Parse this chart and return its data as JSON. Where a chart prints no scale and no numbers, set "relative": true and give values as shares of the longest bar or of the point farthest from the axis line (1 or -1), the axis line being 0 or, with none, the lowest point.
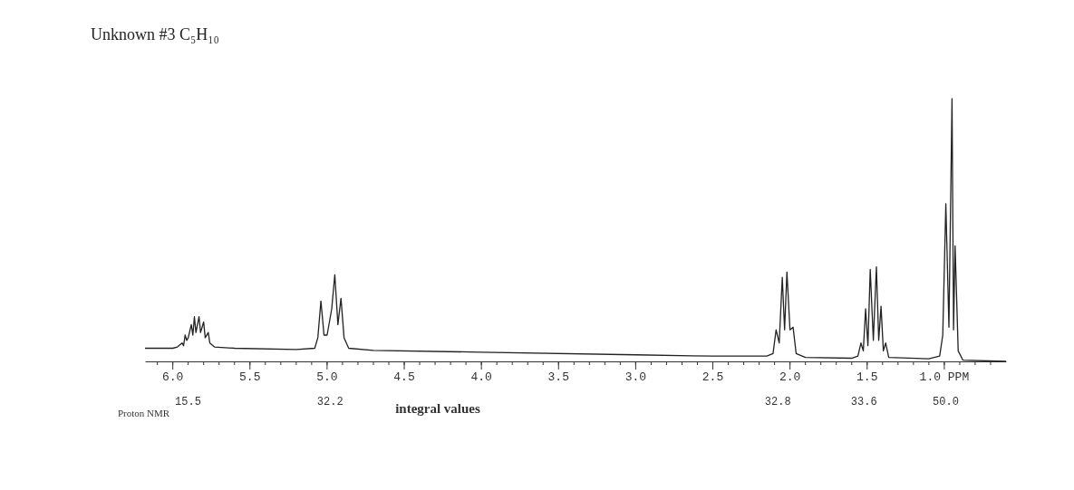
{
  "chart_data": {
    "type": "line",
    "title": "Unknown #3    C₅H₁₀",
    "relative": true,
    "color": "#222222",
    "grid": false,
    "marker": "none",
    "line_style": "solid",
    "xlim": [
      6.18,
      0.6
    ],
    "xticks": [
      {
        "value": 6.1,
        "label": null
      },
      {
        "value": 6.0,
        "label": "6.0"
      },
      {
        "value": 5.9,
        "label": null
      },
      {
        "value": 5.8,
        "label": null
      },
      {
        "value": 5.7,
        "label": null
      },
      {
        "value": 5.6,
        "label": null
      },
      {
        "value": 5.5,
        "label": "5.5"
      },
      {
        "value": 5.4,
        "label": null
      },
      {
        "value": 5.3,
        "label": null
      },
      {
        "value": 5.2,
        "label": null
      },
      {
        "value": 5.1,
        "label": null
      },
      {
        "value": 5.0,
        "label": "5.0"
      },
      {
        "value": 4.9,
        "label": null
      },
      {
        "value": 4.8,
        "label": null
      },
      {
        "value": 4.7,
        "label": null
      },
      {
        "value": 4.6,
        "label": null
      },
      {
        "value": 4.5,
        "label": "4.5"
      },
      {
        "value": 4.4,
        "label": null
      },
      {
        "value": 4.3,
        "label": null
      },
      {
        "value": 4.2,
        "label": null
      },
      {
        "value": 4.1,
        "label": null
      },
      {
        "value": 4.0,
        "label": "4.0"
      },
      {
        "value": 3.9,
        "label": null
      },
      {
        "value": 3.8,
        "label": null
      },
      {
        "value": 3.7,
        "label": null
      },
      {
        "value": 3.6,
        "label": null
      },
      {
        "value": 3.5,
        "label": "3.5"
      },
      {
        "value": 3.4,
        "label": null
      },
      {
        "value": 3.3,
        "label": null
      },
      {
        "value": 3.2,
        "label": null
      },
      {
        "value": 3.1,
        "label": null
      },
      {
        "value": 3.0,
        "label": "3.0"
      },
      {
        "value": 2.9,
        "label": null
      },
      {
        "value": 2.8,
        "label": null
      },
      {
        "value": 2.7,
        "label": null
      },
      {
        "value": 2.6,
        "label": null
      },
      {
        "value": 2.5,
        "label": "2.5"
      },
      {
        "value": 2.4,
        "label": null
      },
      {
        "value": 2.3,
        "label": null
      },
      {
        "value": 2.2,
        "label": null
      },
      {
        "value": 2.1,
        "label": null
      },
      {
        "value": 2.0,
        "label": "2.0"
      },
      {
        "value": 1.9,
        "label": null
      },
      {
        "value": 1.8,
        "label": null
      },
      {
        "value": 1.7,
        "label": null
      },
      {
        "value": 1.6,
        "label": null
      },
      {
        "value": 1.5,
        "label": "1.5"
      },
      {
        "value": 1.4,
        "label": null
      },
      {
        "value": 1.3,
        "label": null
      },
      {
        "value": 1.2,
        "label": null
      },
      {
        "value": 1.1,
        "label": null
      },
      {
        "value": 1.0,
        "label": "1.0 PPM"
      },
      {
        "value": 0.9,
        "label": null
      },
      {
        "value": 0.8,
        "label": null
      },
      {
        "value": 0.7,
        "label": null
      }
    ],
    "x": [
      6.18,
      6.0,
      5.97,
      5.94,
      5.93,
      5.92,
      5.91,
      5.9,
      5.88,
      5.87,
      5.86,
      5.85,
      5.83,
      5.82,
      5.8,
      5.79,
      5.77,
      5.76,
      5.73,
      5.6,
      5.2,
      5.08,
      5.06,
      5.04,
      5.02,
      5.0,
      4.97,
      4.95,
      4.93,
      4.91,
      4.89,
      4.86,
      4.7,
      4.0,
      3.0,
      2.5,
      2.15,
      2.11,
      2.09,
      2.07,
      2.05,
      2.035,
      2.02,
      2.0,
      1.98,
      1.96,
      1.9,
      1.6,
      1.56,
      1.54,
      1.525,
      1.51,
      1.495,
      1.48,
      1.46,
      1.44,
      1.425,
      1.41,
      1.395,
      1.38,
      1.36,
      1.1,
      1.03,
      1.01,
      0.99,
      0.97,
      0.95,
      0.94,
      0.93,
      0.91,
      0.88,
      0.6
    ],
    "values": [
      0.05,
      0.05,
      0.055,
      0.07,
      0.06,
      0.1,
      0.08,
      0.09,
      0.14,
      0.1,
      0.17,
      0.11,
      0.17,
      0.11,
      0.15,
      0.09,
      0.11,
      0.07,
      0.055,
      0.05,
      0.045,
      0.05,
      0.09,
      0.23,
      0.1,
      0.1,
      0.2,
      0.33,
      0.14,
      0.24,
      0.09,
      0.05,
      0.042,
      0.035,
      0.025,
      0.02,
      0.02,
      0.03,
      0.12,
      0.07,
      0.32,
      0.12,
      0.34,
      0.12,
      0.13,
      0.03,
      0.015,
      0.012,
      0.02,
      0.07,
      0.04,
      0.2,
      0.06,
      0.35,
      0.08,
      0.36,
      0.08,
      0.21,
      0.04,
      0.07,
      0.015,
      0.01,
      0.02,
      0.1,
      0.6,
      0.13,
      1.0,
      0.12,
      0.44,
      0.04,
      0.005,
      0.0
    ],
    "annotations": [
      "Proton NMR",
      "integral values",
      "15.5",
      "32.2",
      "32.8",
      "33.6",
      "50.0"
    ]
  }
}
